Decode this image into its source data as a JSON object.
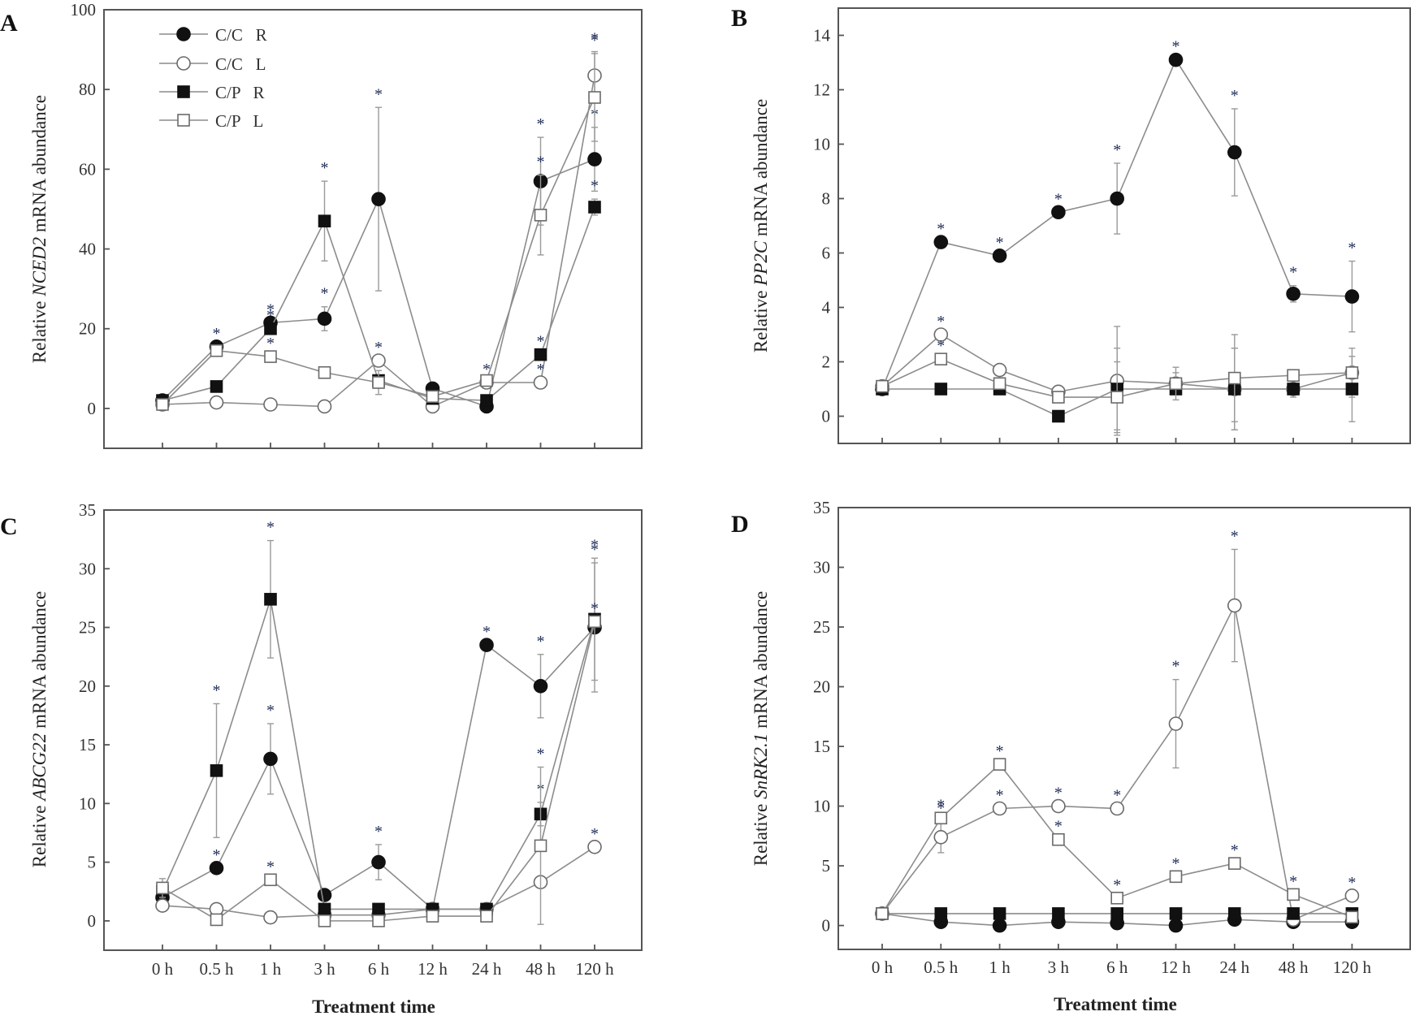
{
  "figure": {
    "x_title": "Treatment time",
    "ylabel_prefix": "Relative",
    "ylabel_suffix": "mRNA abundance"
  },
  "legend": {
    "entries": [
      {
        "label": "C/C   R",
        "marker": "circle-filled"
      },
      {
        "label": "C/C   L",
        "marker": "circle-open"
      },
      {
        "label": "C/P   R",
        "marker": "square-filled"
      },
      {
        "label": "C/P   L",
        "marker": "square-open"
      }
    ]
  },
  "colors": {
    "line": "#8c8c8c",
    "marker": "#111111",
    "star": "#1c2a55",
    "frame": "#555555"
  },
  "chart_data": [
    {
      "panel": "A",
      "type": "line",
      "gene": "NCED2",
      "categories": [
        "0 h",
        "0.5 h",
        "1 h",
        "3 h",
        "6 h",
        "12 h",
        "24 h",
        "48 h",
        "120 h"
      ],
      "ylim": [
        -10,
        100
      ],
      "yticks": [
        0,
        20,
        40,
        60,
        80,
        100
      ],
      "legend_position": "top-left",
      "series": [
        {
          "name": "C/C R",
          "marker": "circle-filled",
          "values": [
            2,
            15.5,
            21.5,
            22.5,
            52.5,
            5,
            0.5,
            57,
            62.5
          ],
          "err": [
            0,
            0,
            0,
            3,
            23,
            0,
            0,
            11,
            8
          ],
          "stars": [
            false,
            true,
            true,
            true,
            true,
            false,
            false,
            true,
            true
          ]
        },
        {
          "name": "C/C L",
          "marker": "circle-open",
          "values": [
            1,
            1.5,
            1,
            0.5,
            12,
            0.5,
            6.5,
            6.5,
            83.5
          ],
          "err": [
            0,
            0,
            0,
            0,
            0,
            0,
            0,
            0,
            6
          ],
          "stars": [
            false,
            false,
            false,
            false,
            true,
            false,
            true,
            true,
            true
          ]
        },
        {
          "name": "C/P R",
          "marker": "square-filled",
          "values": [
            2,
            5.5,
            20,
            47,
            7,
            2.5,
            2,
            13.5,
            50.5
          ],
          "err": [
            0,
            0,
            0,
            10,
            0,
            0,
            0,
            0,
            2
          ],
          "stars": [
            false,
            false,
            true,
            true,
            false,
            false,
            false,
            true,
            true
          ]
        },
        {
          "name": "C/P L",
          "marker": "square-open",
          "values": [
            1,
            14.5,
            13,
            9,
            6.5,
            3,
            7,
            48.5,
            78
          ],
          "err": [
            0,
            0,
            0,
            0,
            3,
            0,
            0,
            10,
            11
          ],
          "stars": [
            false,
            false,
            true,
            false,
            false,
            false,
            false,
            true,
            true
          ]
        }
      ]
    },
    {
      "panel": "B",
      "type": "line",
      "gene": "PP2C",
      "categories": [
        "0 h",
        "0.5 h",
        "1 h",
        "3 h",
        "6 h",
        "12 h",
        "24 h",
        "48 h",
        "120 h"
      ],
      "ylim": [
        -1,
        15
      ],
      "yticks": [
        0,
        2,
        4,
        6,
        8,
        10,
        12,
        14
      ],
      "series": [
        {
          "name": "C/C R",
          "marker": "circle-filled",
          "values": [
            1,
            6.4,
            5.9,
            7.5,
            8,
            13.1,
            9.7,
            4.5,
            4.4
          ],
          "err": [
            0,
            0,
            0,
            0,
            1.3,
            0,
            1.6,
            0.3,
            1.3
          ],
          "stars": [
            false,
            true,
            true,
            true,
            true,
            true,
            true,
            true,
            true
          ]
        },
        {
          "name": "C/C L",
          "marker": "circle-open",
          "values": [
            1.1,
            3,
            1.7,
            0.9,
            1.3,
            1.2,
            1,
            1,
            1.6
          ],
          "err": [
            0,
            0,
            0,
            0,
            2,
            0.4,
            1.5,
            0.3,
            0.9
          ],
          "stars": [
            false,
            true,
            false,
            false,
            false,
            false,
            false,
            false,
            false
          ]
        },
        {
          "name": "C/P R",
          "marker": "square-filled",
          "values": [
            1,
            1,
            1,
            0,
            1,
            1,
            1,
            1,
            1
          ],
          "err": [
            0,
            0,
            0,
            0,
            1.5,
            0,
            1.5,
            0,
            1.2
          ],
          "stars": [
            false,
            false,
            false,
            false,
            false,
            false,
            false,
            false,
            false
          ]
        },
        {
          "name": "C/P L",
          "marker": "square-open",
          "values": [
            1.1,
            2.1,
            1.2,
            0.7,
            0.7,
            1.2,
            1.4,
            1.5,
            1.6
          ],
          "err": [
            0,
            0,
            0,
            0,
            1.3,
            0.6,
            1.6,
            0,
            0
          ],
          "stars": [
            false,
            true,
            false,
            false,
            false,
            false,
            false,
            false,
            false
          ]
        }
      ]
    },
    {
      "panel": "C",
      "type": "line",
      "gene": "ABCG22",
      "categories": [
        "0 h",
        "0.5 h",
        "1 h",
        "3 h",
        "6 h",
        "12 h",
        "24 h",
        "48 h",
        "120 h"
      ],
      "ylim": [
        -2.5,
        35
      ],
      "yticks": [
        0,
        5,
        10,
        15,
        20,
        25,
        30,
        35
      ],
      "series": [
        {
          "name": "C/C R",
          "marker": "circle-filled",
          "values": [
            2,
            4.5,
            13.8,
            2.2,
            5,
            1,
            23.5,
            20,
            25
          ],
          "err": [
            0,
            0,
            3,
            0,
            1.5,
            0,
            0,
            2.7,
            5.5
          ],
          "stars": [
            false,
            true,
            true,
            false,
            true,
            false,
            true,
            true,
            true
          ]
        },
        {
          "name": "C/C L",
          "marker": "circle-open",
          "values": [
            1.3,
            1,
            0.3,
            0.5,
            0.5,
            1,
            1,
            3.3,
            6.3
          ],
          "err": [
            0,
            0,
            0,
            0,
            0,
            0,
            0,
            0,
            0
          ],
          "stars": [
            false,
            false,
            false,
            false,
            false,
            false,
            false,
            false,
            true
          ]
        },
        {
          "name": "C/P R",
          "marker": "square-filled",
          "values": [
            2.5,
            12.8,
            27.4,
            1,
            1,
            1,
            1,
            9.1,
            25.7
          ],
          "err": [
            0,
            5.7,
            5,
            0,
            0,
            0,
            0,
            1,
            5.2
          ],
          "stars": [
            false,
            true,
            true,
            false,
            false,
            false,
            false,
            true,
            true
          ]
        },
        {
          "name": "C/P L",
          "marker": "square-open",
          "values": [
            2.8,
            0.1,
            3.5,
            0,
            0,
            0.4,
            0.4,
            6.4,
            25.5
          ],
          "err": [
            0.8,
            0,
            0,
            0,
            0,
            0,
            0,
            6.7,
            0
          ],
          "stars": [
            false,
            false,
            true,
            false,
            false,
            false,
            false,
            true,
            true
          ]
        }
      ]
    },
    {
      "panel": "D",
      "type": "line",
      "gene": "SnRK2.1",
      "categories": [
        "0 h",
        "0.5 h",
        "1 h",
        "3 h",
        "6 h",
        "12 h",
        "24 h",
        "48 h",
        "120 h"
      ],
      "ylim": [
        -2,
        35
      ],
      "yticks": [
        0,
        5,
        10,
        15,
        20,
        25,
        30,
        35
      ],
      "series": [
        {
          "name": "C/C R",
          "marker": "circle-filled",
          "values": [
            1,
            0.3,
            0,
            0.3,
            0.2,
            0,
            0.5,
            0.3,
            0.3
          ],
          "err": [
            0,
            0,
            0,
            0,
            0,
            0,
            0,
            0,
            0
          ],
          "stars": [
            false,
            false,
            false,
            false,
            false,
            false,
            false,
            false,
            false
          ]
        },
        {
          "name": "C/C L",
          "marker": "circle-open",
          "values": [
            1,
            7.4,
            9.8,
            10,
            9.8,
            16.9,
            26.8,
            0.5,
            2.5
          ],
          "err": [
            0,
            1.3,
            0,
            0,
            0,
            3.7,
            4.7,
            0,
            0
          ],
          "stars": [
            false,
            true,
            true,
            true,
            true,
            true,
            true,
            false,
            true
          ]
        },
        {
          "name": "C/P R",
          "marker": "square-filled",
          "values": [
            1,
            1,
            1,
            1,
            1,
            1,
            1,
            1,
            1
          ],
          "err": [
            0,
            0,
            0,
            0,
            0,
            0,
            0,
            0,
            0
          ],
          "stars": [
            false,
            false,
            false,
            false,
            false,
            false,
            false,
            false,
            false
          ]
        },
        {
          "name": "C/P L",
          "marker": "square-open",
          "values": [
            1,
            9,
            13.5,
            7.2,
            2.3,
            4.1,
            5.2,
            2.6,
            0.7
          ],
          "err": [
            0,
            0,
            0,
            0,
            0,
            0,
            0,
            0,
            0
          ],
          "stars": [
            false,
            true,
            true,
            true,
            true,
            true,
            true,
            true,
            false
          ]
        }
      ]
    }
  ]
}
